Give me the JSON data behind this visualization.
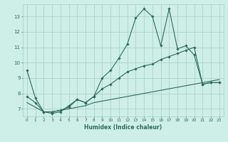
{
  "xlabel": "Humidex (Indice chaleur)",
  "x_values": [
    0,
    1,
    2,
    3,
    4,
    5,
    6,
    7,
    8,
    9,
    10,
    11,
    12,
    13,
    14,
    15,
    16,
    17,
    18,
    19,
    20,
    21,
    22,
    23
  ],
  "line1_y": [
    9.5,
    7.7,
    6.8,
    6.7,
    6.8,
    7.2,
    7.6,
    7.4,
    7.8,
    9.0,
    9.5,
    10.3,
    11.2,
    12.9,
    13.5,
    13.0,
    11.1,
    13.5,
    10.9,
    11.1,
    10.5,
    8.6,
    8.7,
    8.7
  ],
  "line2_y": [
    7.8,
    7.4,
    6.8,
    6.8,
    6.9,
    7.1,
    7.6,
    7.4,
    7.8,
    8.3,
    8.6,
    9.0,
    9.4,
    9.6,
    9.8,
    9.9,
    10.2,
    10.4,
    10.6,
    10.8,
    11.0,
    8.6,
    8.7,
    8.7
  ],
  "line3_y": [
    7.4,
    7.1,
    6.8,
    6.8,
    6.9,
    7.0,
    7.1,
    7.2,
    7.4,
    7.5,
    7.6,
    7.7,
    7.8,
    7.9,
    8.0,
    8.1,
    8.2,
    8.3,
    8.4,
    8.5,
    8.6,
    8.7,
    8.8,
    8.9
  ],
  "line_color": "#2e6b5e",
  "bg_color": "#ceeee8",
  "grid_color": "#aaccc6",
  "ylim": [
    6.5,
    13.8
  ],
  "yticks": [
    7,
    8,
    9,
    10,
    11,
    12,
    13
  ],
  "xlim": [
    -0.5,
    23.5
  ],
  "xticks": [
    0,
    1,
    2,
    3,
    4,
    5,
    6,
    7,
    8,
    9,
    10,
    11,
    12,
    13,
    14,
    15,
    16,
    17,
    18,
    19,
    20,
    21,
    22,
    23
  ]
}
